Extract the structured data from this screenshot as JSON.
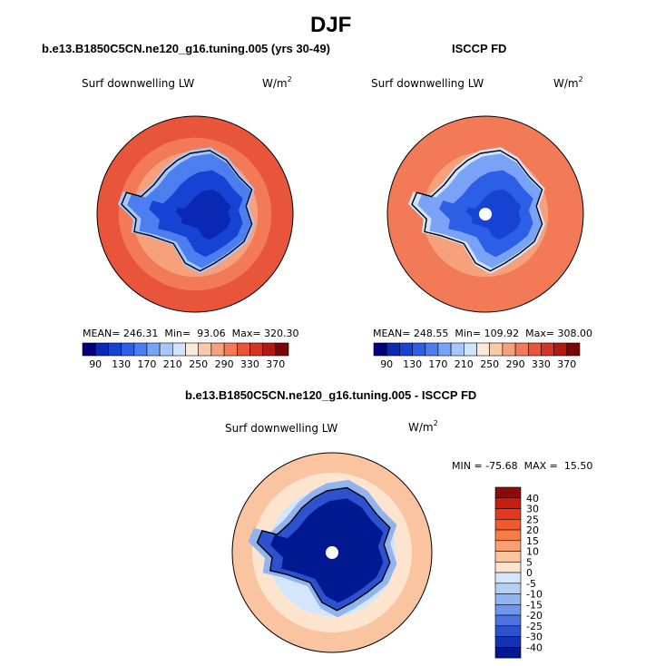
{
  "page_title": "DJF",
  "panels": [
    {
      "id": "model",
      "header": "b.e13.B1850C5CN.ne120_g16.tuning.005 (yrs 30-49)",
      "variable": "Surf downwelling LW",
      "units_base": "W/m",
      "units_exp": "2",
      "stats_text": "MEAN= 246.31  Min=  93.06  Max= 320.30"
    },
    {
      "id": "obs",
      "header": "ISCCP FD",
      "variable": "Surf downwelling LW",
      "units_base": "W/m",
      "units_exp": "2",
      "stats_text": "MEAN= 248.55  Min= 109.92  Max= 308.00"
    },
    {
      "id": "diff",
      "header": "b.e13.B1850C5CN.ne120_g16.tuning.005 - ISCCP FD",
      "variable": "Surf downwelling LW",
      "units_base": "W/m",
      "units_exp": "2",
      "stats_text": "MIN = -75.68  MAX =  15.50"
    }
  ],
  "chart_data": [
    {
      "type": "heatmap",
      "title": "b.e13.B1850C5CN.ne120_g16.tuning.005 (yrs 30-49)",
      "projection": "south-polar-stereographic",
      "field": "Surf downwelling LW",
      "units": "W/m^2",
      "stats": {
        "mean": 246.31,
        "min": 93.06,
        "max": 320.3
      },
      "colorbar": {
        "orientation": "horizontal",
        "tick_labels": [
          "90",
          "130",
          "170",
          "210",
          "250",
          "290",
          "330",
          "370"
        ],
        "levels": [
          90,
          110,
          130,
          150,
          170,
          190,
          210,
          230,
          250,
          270,
          290,
          310,
          330,
          350,
          370
        ],
        "colors": [
          "#00007a",
          "#0a28b4",
          "#1743d4",
          "#2c5ee6",
          "#4c7ef0",
          "#7aa2f6",
          "#a8c6fa",
          "#d2e4fc",
          "#fde9dc",
          "#fbc8aa",
          "#f7a07c",
          "#f27a56",
          "#e8553a",
          "#d43424",
          "#b01a14",
          "#780808"
        ]
      },
      "regions": [
        {
          "name": "ocean-outer",
          "value": 315
        },
        {
          "name": "ocean-mid",
          "value": 300
        },
        {
          "name": "sea-ice-edge",
          "value": 280
        },
        {
          "name": "coast",
          "value": 245
        },
        {
          "name": "ice-shelves",
          "value": 205
        },
        {
          "name": "antarctica-margin",
          "value": 165
        },
        {
          "name": "antarctica-plateau",
          "value": 125
        },
        {
          "name": "east-antarctica-core",
          "value": 100
        }
      ]
    },
    {
      "type": "heatmap",
      "title": "ISCCP FD",
      "projection": "south-polar-stereographic",
      "field": "Surf downwelling LW",
      "units": "W/m^2",
      "stats": {
        "mean": 248.55,
        "min": 109.92,
        "max": 308.0
      },
      "colorbar": {
        "orientation": "horizontal",
        "tick_labels": [
          "90",
          "130",
          "170",
          "210",
          "250",
          "290",
          "330",
          "370"
        ],
        "levels": [
          90,
          110,
          130,
          150,
          170,
          190,
          210,
          230,
          250,
          270,
          290,
          310,
          330,
          350,
          370
        ],
        "colors": [
          "#00007a",
          "#0a28b4",
          "#1743d4",
          "#2c5ee6",
          "#4c7ef0",
          "#7aa2f6",
          "#a8c6fa",
          "#d2e4fc",
          "#fde9dc",
          "#fbc8aa",
          "#f7a07c",
          "#f27a56",
          "#e8553a",
          "#d43424",
          "#b01a14",
          "#780808"
        ]
      },
      "regions": [
        {
          "name": "ocean-outer",
          "value": 305
        },
        {
          "name": "ocean-mid",
          "value": 290
        },
        {
          "name": "sea-ice-edge",
          "value": 275
        },
        {
          "name": "coast",
          "value": 245
        },
        {
          "name": "ice-shelves",
          "value": 210
        },
        {
          "name": "antarctica-margin",
          "value": 175
        },
        {
          "name": "antarctica-plateau",
          "value": 140
        },
        {
          "name": "east-antarctica-core",
          "value": 120
        }
      ],
      "missing_pole": true
    },
    {
      "type": "heatmap",
      "title": "b.e13.B1850C5CN.ne120_g16.tuning.005 - ISCCP FD",
      "projection": "south-polar-stereographic",
      "field": "Surf downwelling LW",
      "units": "W/m^2",
      "stats": {
        "min": -75.68,
        "max": 15.5
      },
      "colorbar": {
        "orientation": "vertical",
        "tick_labels": [
          "40",
          "30",
          "25",
          "20",
          "15",
          "10",
          "5",
          "0",
          "-5",
          "-10",
          "-15",
          "-20",
          "-25",
          "-30",
          "-40"
        ],
        "levels": [
          40,
          30,
          25,
          20,
          15,
          10,
          5,
          0,
          -5,
          -10,
          -15,
          -20,
          -25,
          -30,
          -40
        ],
        "colors": [
          "#8c0c0c",
          "#c81e10",
          "#e2391e",
          "#ee5a2e",
          "#f57c46",
          "#f8a070",
          "#fbc4a0",
          "#fde4cf",
          "#d4e6fb",
          "#b2cff6",
          "#90b4f0",
          "#6e96ea",
          "#4c74e0",
          "#2c52d0",
          "#1430b4",
          "#001890"
        ]
      },
      "regions": [
        {
          "name": "ocean-outer",
          "value": 7
        },
        {
          "name": "ocean-mid",
          "value": 3
        },
        {
          "name": "sea-ice-edge",
          "value": -3
        },
        {
          "name": "coast",
          "value": -12
        },
        {
          "name": "antarctica-margin",
          "value": -30
        },
        {
          "name": "antarctica-interior",
          "value": -45
        }
      ],
      "missing_pole": true
    }
  ]
}
